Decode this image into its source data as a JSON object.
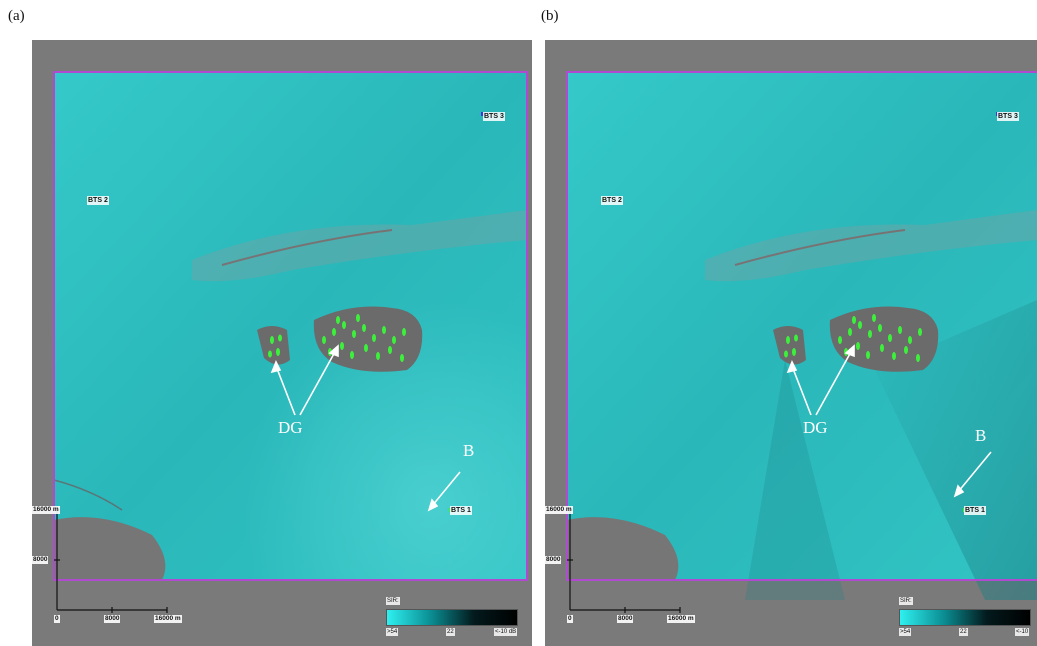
{
  "panels": [
    {
      "label": "(a)",
      "bts": [
        "BTS 3",
        "BTS 2",
        "BTS 1"
      ],
      "annotations": {
        "dg": "DG",
        "b": "B"
      },
      "scale": {
        "y_top": "16000 m",
        "y_mid": "8000",
        "x_zero": "0",
        "x_mid": "8000",
        "x_end": "16000 m"
      },
      "legend": {
        "title": "SIR:",
        "min": ">54",
        "mid": "22",
        "max": "<-10 dB"
      }
    },
    {
      "label": "(b)",
      "bts": [
        "BTS 3",
        "BTS 2",
        "BTS 1"
      ],
      "annotations": {
        "dg": "DG",
        "b": "B"
      },
      "scale": {
        "y_top": "16000 m",
        "y_mid": "8000",
        "x_zero": "0",
        "x_mid": "8000",
        "x_end": "16000 m"
      },
      "legend": {
        "title": "SIR:",
        "min": ">54",
        "mid": "22",
        "max": "<-10"
      }
    }
  ],
  "colors": {
    "coverage": "#2cc6c6",
    "terrain": "#6e6e6e",
    "border": "#b04ad0",
    "dg": "#3cf03c",
    "bts_marker": "#2b3fd6"
  }
}
